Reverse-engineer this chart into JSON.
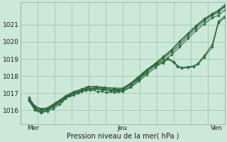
{
  "title": "",
  "xlabel": "Pression niveau de la mer( hPa )",
  "ylabel": "",
  "bg_color": "#cce8d8",
  "grid_color": "#99ccb0",
  "line_color": "#2d6a3f",
  "xlim": [
    0,
    1
  ],
  "ylim": [
    1015.2,
    1022.3
  ],
  "yticks": [
    1016,
    1017,
    1018,
    1019,
    1020,
    1021
  ],
  "xtick_labels": [
    "Mer",
    "Jeu",
    "Ven"
  ],
  "xtick_pos": [
    0.06,
    0.5,
    0.96
  ],
  "series": [
    [
      0.04,
      1016.55,
      0.07,
      1016.0,
      0.1,
      1015.85,
      0.13,
      1015.95,
      0.16,
      1016.1,
      0.19,
      1016.35,
      0.22,
      1016.7,
      0.26,
      1016.9,
      0.3,
      1017.1,
      0.34,
      1017.2,
      0.38,
      1017.1,
      0.42,
      1017.05,
      0.46,
      1017.05,
      0.5,
      1017.1,
      0.54,
      1017.35,
      0.58,
      1017.7,
      0.62,
      1018.1,
      0.66,
      1018.5,
      0.7,
      1018.85,
      0.74,
      1019.25,
      0.78,
      1019.7,
      0.82,
      1020.2,
      0.86,
      1020.65,
      0.9,
      1021.05,
      0.94,
      1021.4,
      0.97,
      1021.55,
      1.0,
      1021.85
    ],
    [
      0.04,
      1016.6,
      0.07,
      1016.05,
      0.1,
      1015.9,
      0.13,
      1016.0,
      0.16,
      1016.2,
      0.2,
      1016.5,
      0.24,
      1016.85,
      0.28,
      1017.0,
      0.32,
      1017.2,
      0.36,
      1017.25,
      0.4,
      1017.2,
      0.44,
      1017.15,
      0.48,
      1017.1,
      0.5,
      1017.15,
      0.54,
      1017.4,
      0.58,
      1017.8,
      0.62,
      1018.2,
      0.66,
      1018.65,
      0.7,
      1019.0,
      0.74,
      1019.4,
      0.78,
      1019.85,
      0.82,
      1020.35,
      0.86,
      1020.8,
      0.9,
      1021.2,
      0.94,
      1021.55,
      0.97,
      1021.7,
      1.0,
      1022.05
    ],
    [
      0.04,
      1016.65,
      0.07,
      1016.1,
      0.1,
      1015.95,
      0.13,
      1016.05,
      0.16,
      1016.25,
      0.2,
      1016.55,
      0.24,
      1016.9,
      0.28,
      1017.05,
      0.32,
      1017.2,
      0.36,
      1017.25,
      0.4,
      1017.2,
      0.44,
      1017.15,
      0.48,
      1017.15,
      0.5,
      1017.2,
      0.54,
      1017.5,
      0.58,
      1017.85,
      0.62,
      1018.3,
      0.66,
      1018.7,
      0.7,
      1019.1,
      0.74,
      1019.5,
      0.78,
      1020.0,
      0.82,
      1020.45,
      0.86,
      1020.9,
      0.9,
      1021.3,
      0.94,
      1021.6,
      0.97,
      1021.8,
      1.0,
      1022.1
    ],
    [
      0.04,
      1016.7,
      0.07,
      1016.15,
      0.1,
      1016.0,
      0.13,
      1016.1,
      0.16,
      1016.3,
      0.2,
      1016.6,
      0.24,
      1016.95,
      0.28,
      1017.1,
      0.32,
      1017.25,
      0.36,
      1017.3,
      0.4,
      1017.25,
      0.44,
      1017.2,
      0.48,
      1017.2,
      0.5,
      1017.25,
      0.54,
      1017.55,
      0.58,
      1017.9,
      0.62,
      1018.35,
      0.66,
      1018.75,
      0.7,
      1019.15,
      0.74,
      1019.55,
      0.78,
      1020.05,
      0.82,
      1020.5,
      0.86,
      1020.95,
      0.9,
      1021.35,
      0.94,
      1021.65,
      0.97,
      1021.85,
      1.0,
      1022.15
    ],
    [
      0.04,
      1016.7,
      0.07,
      1016.2,
      0.1,
      1016.05,
      0.13,
      1016.1,
      0.17,
      1016.4,
      0.22,
      1016.8,
      0.26,
      1017.05,
      0.3,
      1017.2,
      0.33,
      1017.35,
      0.37,
      1017.35,
      0.41,
      1017.3,
      0.46,
      1017.25,
      0.5,
      1017.25,
      0.54,
      1017.55,
      0.57,
      1017.85,
      0.6,
      1018.15,
      0.62,
      1018.35,
      0.64,
      1018.55,
      0.67,
      1018.7,
      0.7,
      1018.75,
      0.72,
      1019.0,
      0.75,
      1018.8,
      0.77,
      1018.55,
      0.79,
      1018.45,
      0.82,
      1018.5,
      0.85,
      1018.55,
      0.87,
      1018.7,
      0.9,
      1019.1,
      0.94,
      1019.7,
      0.97,
      1021.1,
      1.0,
      1021.4
    ],
    [
      0.04,
      1016.75,
      0.07,
      1016.25,
      0.1,
      1016.1,
      0.13,
      1016.15,
      0.17,
      1016.45,
      0.22,
      1016.85,
      0.26,
      1017.1,
      0.3,
      1017.25,
      0.33,
      1017.4,
      0.37,
      1017.4,
      0.41,
      1017.35,
      0.46,
      1017.3,
      0.5,
      1017.3,
      0.54,
      1017.6,
      0.57,
      1017.9,
      0.6,
      1018.2,
      0.62,
      1018.4,
      0.65,
      1018.65,
      0.67,
      1018.8,
      0.7,
      1018.85,
      0.72,
      1019.05,
      0.75,
      1018.85,
      0.77,
      1018.6,
      0.79,
      1018.5,
      0.82,
      1018.55,
      0.85,
      1018.6,
      0.87,
      1018.75,
      0.9,
      1019.2,
      0.94,
      1019.85,
      0.97,
      1021.2,
      1.0,
      1021.5
    ]
  ]
}
